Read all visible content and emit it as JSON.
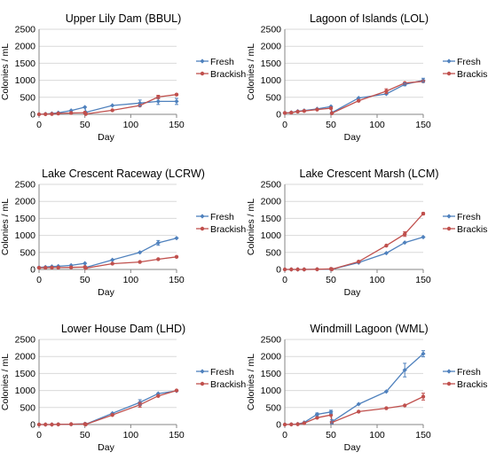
{
  "chart_data": [
    {
      "type": "line",
      "title": "Upper Lily Dam (BBUL)",
      "xlabel": "Day",
      "ylabel": "Colonies / mL",
      "xlim": [
        0,
        150
      ],
      "ylim": [
        0,
        2500
      ],
      "xticks": [
        0,
        50,
        100,
        150
      ],
      "yticks": [
        0,
        500,
        1000,
        1500,
        2000,
        2500
      ],
      "grid": "horizontal",
      "legend": "right",
      "series": [
        {
          "name": "Fresh",
          "color": "#4f81bd",
          "marker": "diamond",
          "x": [
            0,
            7,
            14,
            21,
            35,
            50,
            51,
            80,
            110,
            130,
            150
          ],
          "y": [
            0,
            10,
            25,
            45,
            110,
            210,
            60,
            260,
            330,
            380,
            380
          ]
        },
        {
          "name": "Brackish",
          "color": "#c0504d",
          "marker": "circle",
          "x": [
            0,
            7,
            14,
            21,
            35,
            50,
            51,
            80,
            110,
            130,
            150
          ],
          "y": [
            0,
            5,
            10,
            25,
            40,
            50,
            10,
            120,
            260,
            510,
            580
          ]
        }
      ]
    },
    {
      "type": "line",
      "title": "Lagoon of Islands (LOL)",
      "xlabel": "Day",
      "ylabel": "Colonies / mL",
      "xlim": [
        0,
        150
      ],
      "ylim": [
        0,
        2500
      ],
      "xticks": [
        0,
        50,
        100,
        150
      ],
      "yticks": [
        0,
        500,
        1000,
        1500,
        2000,
        2500
      ],
      "grid": "horizontal",
      "legend": "right",
      "series": [
        {
          "name": "Fresh",
          "color": "#4f81bd",
          "marker": "diamond",
          "x": [
            0,
            7,
            14,
            21,
            35,
            50,
            51,
            80,
            110,
            130,
            150
          ],
          "y": [
            40,
            55,
            90,
            110,
            160,
            230,
            50,
            480,
            600,
            880,
            1000
          ]
        },
        {
          "name": "Brackish",
          "color": "#c0504d",
          "marker": "circle",
          "x": [
            0,
            7,
            14,
            21,
            35,
            50,
            51,
            80,
            110,
            130,
            150
          ],
          "y": [
            40,
            50,
            80,
            100,
            140,
            180,
            30,
            400,
            680,
            920,
            970
          ]
        }
      ]
    },
    {
      "type": "line",
      "title": "Lake Crescent Raceway (LCRW)",
      "xlabel": "Day",
      "ylabel": "Colonies / mL",
      "xlim": [
        0,
        150
      ],
      "ylim": [
        0,
        2500
      ],
      "xticks": [
        0,
        50,
        100,
        150
      ],
      "yticks": [
        0,
        500,
        1000,
        1500,
        2000,
        2500
      ],
      "grid": "horizontal",
      "legend": "right",
      "series": [
        {
          "name": "Fresh",
          "color": "#4f81bd",
          "marker": "diamond",
          "x": [
            0,
            7,
            14,
            21,
            35,
            50,
            51,
            80,
            110,
            130,
            150
          ],
          "y": [
            60,
            70,
            85,
            95,
            120,
            180,
            60,
            280,
            500,
            780,
            920
          ]
        },
        {
          "name": "Brackish",
          "color": "#c0504d",
          "marker": "circle",
          "x": [
            0,
            7,
            14,
            21,
            35,
            50,
            51,
            80,
            110,
            130,
            150
          ],
          "y": [
            50,
            50,
            55,
            55,
            60,
            70,
            40,
            170,
            220,
            300,
            370
          ]
        }
      ]
    },
    {
      "type": "line",
      "title": "Lake Crescent Marsh (LCM)",
      "xlabel": "Day",
      "ylabel": "Colonies / mL",
      "xlim": [
        0,
        150
      ],
      "ylim": [
        0,
        2500
      ],
      "xticks": [
        0,
        50,
        100,
        150
      ],
      "yticks": [
        0,
        500,
        1000,
        1500,
        2000,
        2500
      ],
      "grid": "horizontal",
      "legend": "right",
      "series": [
        {
          "name": "Fresh",
          "color": "#4f81bd",
          "marker": "diamond",
          "x": [
            0,
            7,
            14,
            21,
            35,
            50,
            51,
            80,
            110,
            130,
            150
          ],
          "y": [
            0,
            0,
            0,
            0,
            5,
            10,
            5,
            200,
            480,
            790,
            950
          ]
        },
        {
          "name": "Brackish",
          "color": "#c0504d",
          "marker": "circle",
          "x": [
            0,
            7,
            14,
            21,
            35,
            50,
            51,
            80,
            110,
            130,
            150
          ],
          "y": [
            0,
            0,
            0,
            0,
            5,
            15,
            5,
            230,
            700,
            1040,
            1640
          ]
        }
      ]
    },
    {
      "type": "line",
      "title": "Lower House Dam (LHD)",
      "xlabel": "Day",
      "ylabel": "Colonies / mL",
      "xlim": [
        0,
        150
      ],
      "ylim": [
        0,
        2500
      ],
      "xticks": [
        0,
        50,
        100,
        150
      ],
      "yticks": [
        0,
        500,
        1000,
        1500,
        2000,
        2500
      ],
      "grid": "horizontal",
      "legend": "right",
      "series": [
        {
          "name": "Fresh",
          "color": "#4f81bd",
          "marker": "diamond",
          "x": [
            0,
            7,
            14,
            21,
            35,
            50,
            51,
            80,
            110,
            130,
            150
          ],
          "y": [
            0,
            0,
            0,
            5,
            10,
            20,
            10,
            330,
            650,
            910,
            990
          ]
        },
        {
          "name": "Brackish",
          "color": "#c0504d",
          "marker": "circle",
          "x": [
            0,
            7,
            14,
            21,
            35,
            50,
            51,
            80,
            110,
            130,
            150
          ],
          "y": [
            0,
            0,
            0,
            5,
            10,
            15,
            5,
            280,
            580,
            840,
            1000
          ]
        }
      ]
    },
    {
      "type": "line",
      "title": "Windmill Lagoon (WML)",
      "xlabel": "Day",
      "ylabel": "Colonies / mL",
      "xlim": [
        0,
        150
      ],
      "ylim": [
        0,
        2500
      ],
      "xticks": [
        0,
        50,
        100,
        150
      ],
      "yticks": [
        0,
        500,
        1000,
        1500,
        2000,
        2500
      ],
      "grid": "horizontal",
      "legend": "right",
      "series": [
        {
          "name": "Fresh",
          "color": "#4f81bd",
          "marker": "diamond",
          "x": [
            0,
            7,
            14,
            21,
            35,
            50,
            51,
            80,
            110,
            130,
            150
          ],
          "y": [
            0,
            5,
            15,
            60,
            300,
            370,
            80,
            600,
            970,
            1600,
            2080
          ]
        },
        {
          "name": "Brackish",
          "color": "#c0504d",
          "marker": "circle",
          "x": [
            0,
            7,
            14,
            21,
            35,
            50,
            51,
            80,
            110,
            130,
            150
          ],
          "y": [
            0,
            5,
            10,
            40,
            200,
            280,
            60,
            380,
            480,
            560,
            820
          ]
        }
      ]
    }
  ]
}
